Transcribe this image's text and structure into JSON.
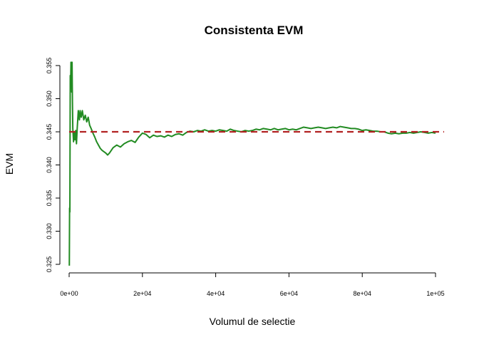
{
  "chart_data": {
    "type": "line",
    "title": "Consistenta EVM",
    "xlabel": "Volumul de selectie",
    "ylabel": "EVM",
    "xlim": [
      0,
      100000
    ],
    "ylim": [
      0.325,
      0.355
    ],
    "x_ticks": [
      0,
      20000,
      40000,
      60000,
      80000,
      100000
    ],
    "x_tick_labels": [
      "0e+00",
      "2e+04",
      "4e+04",
      "6e+04",
      "8e+04",
      "1e+05"
    ],
    "y_ticks": [
      0.325,
      0.33,
      0.335,
      0.34,
      0.345,
      0.35,
      0.355
    ],
    "y_tick_labels": [
      "0.325",
      "0.330",
      "0.335",
      "0.340",
      "0.345",
      "0.350",
      "0.355"
    ],
    "grid": false,
    "legend": "none",
    "series": [
      {
        "color": "#228B22",
        "x": [
          50,
          120,
          200,
          300,
          400,
          500,
          600,
          700,
          800,
          900,
          1000,
          1200,
          1400,
          1600,
          1800,
          2000,
          2200,
          2500,
          2800,
          3000,
          3300,
          3600,
          4000,
          4400,
          4800,
          5200,
          5600,
          6000,
          6500,
          7000,
          7500,
          8000,
          8500,
          9000,
          9500,
          10000,
          10500,
          11000,
          11500,
          12000,
          13000,
          14000,
          15000,
          16000,
          17000,
          18000,
          19000,
          20000,
          21000,
          22000,
          23000,
          24000,
          25000,
          26000,
          27000,
          28000,
          29000,
          30000,
          31000,
          32000,
          33000,
          34000,
          35000,
          36000,
          37000,
          38000,
          39000,
          40000,
          41000,
          42000,
          43000,
          44000,
          45000,
          46000,
          47000,
          48000,
          49000,
          50000,
          51000,
          52000,
          53000,
          54000,
          55000,
          56000,
          57000,
          58000,
          59000,
          60000,
          61000,
          62000,
          63000,
          64000,
          65000,
          66000,
          67000,
          68000,
          69000,
          70000,
          71000,
          72000,
          73000,
          74000,
          75000,
          76000,
          77000,
          78000,
          79000,
          80000,
          81000,
          82000,
          83000,
          84000,
          85000,
          86000,
          87000,
          88000,
          89000,
          90000,
          91000,
          92000,
          93000,
          94000,
          95000,
          96000,
          97000,
          98000,
          99000,
          100000
        ],
        "values": [
          0.3248,
          0.3335,
          0.3329,
          0.3535,
          0.352,
          0.3555,
          0.3545,
          0.351,
          0.3555,
          0.3495,
          0.3455,
          0.3435,
          0.3448,
          0.3438,
          0.3452,
          0.3432,
          0.3455,
          0.3482,
          0.3468,
          0.3482,
          0.3472,
          0.3482,
          0.3468,
          0.3475,
          0.3465,
          0.3472,
          0.346,
          0.3455,
          0.3448,
          0.3442,
          0.3435,
          0.343,
          0.3425,
          0.3422,
          0.342,
          0.3418,
          0.3415,
          0.3418,
          0.3422,
          0.3426,
          0.343,
          0.3427,
          0.3432,
          0.3435,
          0.3437,
          0.3434,
          0.3442,
          0.3448,
          0.3446,
          0.3441,
          0.3445,
          0.3443,
          0.3444,
          0.3442,
          0.3445,
          0.3443,
          0.3446,
          0.3447,
          0.3445,
          0.3449,
          0.3451,
          0.345,
          0.3452,
          0.3451,
          0.3453,
          0.3451,
          0.3452,
          0.3451,
          0.3453,
          0.3452,
          0.3451,
          0.3454,
          0.3452,
          0.3451,
          0.345,
          0.3452,
          0.3451,
          0.3452,
          0.3454,
          0.3453,
          0.3455,
          0.3454,
          0.3453,
          0.3455,
          0.3453,
          0.3454,
          0.3455,
          0.3453,
          0.3454,
          0.3453,
          0.3455,
          0.3457,
          0.3456,
          0.3455,
          0.3456,
          0.3457,
          0.3456,
          0.3455,
          0.3456,
          0.3457,
          0.3456,
          0.3458,
          0.3457,
          0.3456,
          0.3455,
          0.3455,
          0.3454,
          0.3452,
          0.3453,
          0.3452,
          0.3451,
          0.3451,
          0.345,
          0.345,
          0.3448,
          0.3447,
          0.3448,
          0.3447,
          0.3448,
          0.3448,
          0.3449,
          0.3448,
          0.3449,
          0.345,
          0.3449,
          0.3448,
          0.3449,
          0.3448
        ]
      }
    ],
    "reference_line": {
      "y": 0.345,
      "color": "#B22222",
      "style": "dashed"
    }
  }
}
